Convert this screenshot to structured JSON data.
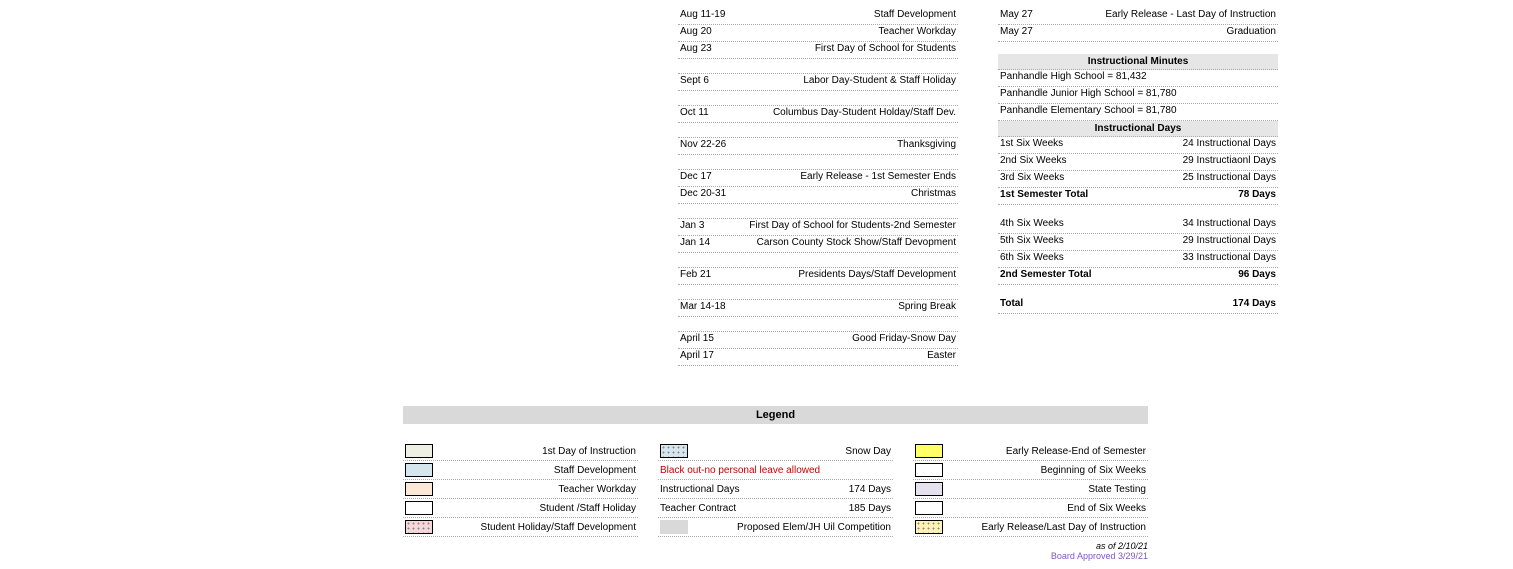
{
  "events": [
    {
      "date": "Aug 11-19",
      "desc": "Staff Development"
    },
    {
      "date": "Aug 20",
      "desc": "Teacher  Workday"
    },
    {
      "date": "Aug 23",
      "desc": "First Day of School for Students"
    },
    {
      "spacer": true
    },
    {
      "date": "Sept 6",
      "desc": "Labor Day-Student & Staff Holiday"
    },
    {
      "spacer": true
    },
    {
      "date": "Oct 11",
      "desc": "Columbus Day-Student Holday/Staff Dev."
    },
    {
      "spacer": true
    },
    {
      "date": "Nov 22-26",
      "desc": "Thanksgiving"
    },
    {
      "spacer": true
    },
    {
      "date": "Dec 17",
      "desc": "Early Release - 1st Semester Ends"
    },
    {
      "date": "Dec 20-31",
      "desc": "Christmas"
    },
    {
      "spacer": true
    },
    {
      "date": "Jan 3",
      "desc": "First Day of School for Students-2nd Semester"
    },
    {
      "date": "Jan 14",
      "desc": "Carson County Stock Show/Staff Devopment"
    },
    {
      "spacer": true
    },
    {
      "date": "Feb 21",
      "desc": "Presidents Days/Staff Development"
    },
    {
      "spacer": true
    },
    {
      "date": "Mar 14-18",
      "desc": "Spring Break"
    },
    {
      "spacer": true
    },
    {
      "date": "April 15",
      "desc": "Good Friday-Snow Day"
    },
    {
      "date": "April 17",
      "desc": "Easter"
    }
  ],
  "events2": [
    {
      "date": "May 27",
      "desc": "Early Release - Last Day of Instruction"
    },
    {
      "date": "May 27",
      "desc": "Graduation"
    }
  ],
  "instr_minutes_header": "Instructional Minutes",
  "minutes": [
    "Panhandle High School  =  81,432",
    "Panhandle Junior High School  =  81,780",
    "Panhandle Elementary School  =  81,780"
  ],
  "instr_days_header": "Instructional Days",
  "six_weeks_1": [
    {
      "label": "1st Six Weeks",
      "val": "24 Instructional Days"
    },
    {
      "label": "2nd Six Weeks",
      "val": "29 Instructiaonl Days"
    },
    {
      "label": "3rd Six Weeks",
      "val": "25 Instructional Days"
    }
  ],
  "sem1_total": {
    "label": "1st Semester Total",
    "val": "78 Days"
  },
  "six_weeks_2": [
    {
      "label": "4th Six Weeks",
      "val": "34 Instructional Days"
    },
    {
      "label": "5th Six Weeks",
      "val": "29 Instructional Days"
    },
    {
      "label": "6th Six Weeks",
      "val": "33 Instructional Days"
    }
  ],
  "sem2_total": {
    "label": "2nd Semester Total",
    "val": "96 Days"
  },
  "grand_total": {
    "label": "Total",
    "val": "174 Days"
  },
  "legend_title": "Legend",
  "legend_col1": [
    {
      "color": "#eef0e4",
      "label": "1st Day of  Instruction"
    },
    {
      "color": "#d6e6ef",
      "label": "Staff Development"
    },
    {
      "color": "#fce8d6",
      "label": "Teacher Workday"
    },
    {
      "color": "#ffffff",
      "label": "Student /Staff Holiday"
    },
    {
      "color": "#f5d6db",
      "dotted": true,
      "label": "Student Holiday/Staff Development"
    }
  ],
  "legend_col2": [
    {
      "color": "#d6e6ef",
      "dotted": true,
      "label": "Snow Day",
      "align": "right"
    },
    {
      "text_only": true,
      "red": true,
      "label": "Black out-no personal leave allowed",
      "align": "left"
    },
    {
      "text_only": true,
      "split": true,
      "left": "Instructional Days",
      "right": "174 Days"
    },
    {
      "text_only": true,
      "split": true,
      "left": "Teacher Contract",
      "right": "185 Days"
    },
    {
      "color": "#d9d9d9",
      "noborder": true,
      "label": "Proposed Elem/JH Uil  Competition",
      "align": "right"
    }
  ],
  "legend_col3": [
    {
      "color": "#ffff66",
      "label": "Early Release-End of Semester"
    },
    {
      "color": "#ffffff",
      "label": "Beginning of Six Weeks"
    },
    {
      "color": "#e6e0ef",
      "label": "State Testing"
    },
    {
      "color": "#ffffff",
      "label": "End of Six Weeks"
    },
    {
      "color": "#fff2b3",
      "dotted": true,
      "label": "Early Release/Last Day of Instruction"
    }
  ],
  "footnote1": "as of 2/10/21",
  "footnote2": "Board Approved 3/29/21"
}
